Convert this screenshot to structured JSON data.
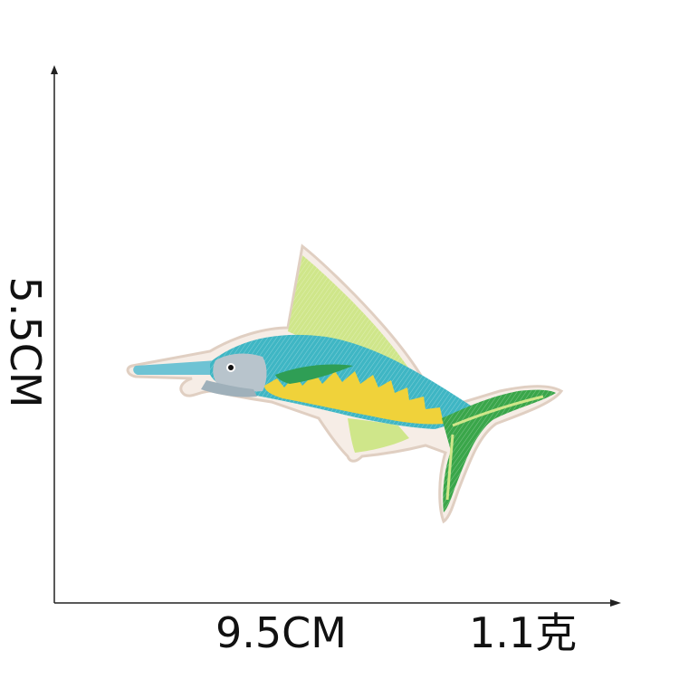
{
  "dimensions": {
    "height_label": "5.5CM",
    "width_label": "9.5CM",
    "weight_label": "1.1克"
  },
  "colors": {
    "axis": "#222222",
    "patch_border": "#e8d8cc",
    "body_blue": "#3fb6c4",
    "belly_yellow": "#f0d23a",
    "fin_green": "#cfe68a",
    "tail_green": "#3aa64a",
    "head_grey": "#b8c4cc"
  },
  "patch": {
    "icon": "marlin-embroidered-patch-icon"
  }
}
